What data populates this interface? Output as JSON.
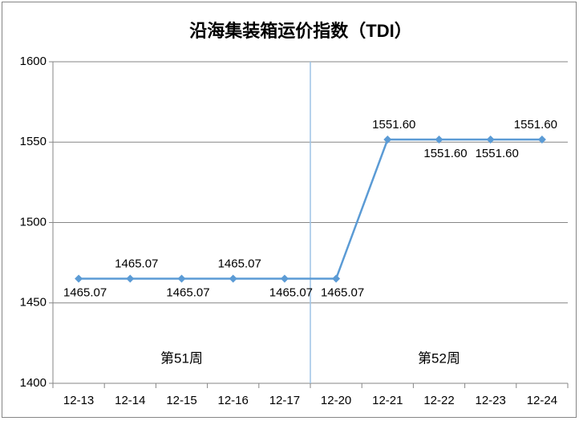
{
  "chart_data": {
    "type": "line",
    "title": "沿海集装箱运价指数（TDI）",
    "categories": [
      "12-13",
      "12-14",
      "12-15",
      "12-16",
      "12-17",
      "12-20",
      "12-21",
      "12-22",
      "12-23",
      "12-24"
    ],
    "series": [
      {
        "name": "TDI",
        "color": "#5b9bd5",
        "values": [
          1465.07,
          1465.07,
          1465.07,
          1465.07,
          1465.07,
          1465.07,
          1551.6,
          1551.6,
          1551.6,
          1551.6
        ],
        "value_labels": [
          "1465.07",
          "1465.07",
          "1465.07",
          "1465.07",
          "1465.07",
          "1465.07",
          "1551.60",
          "1551.60",
          "1551.60",
          "1551.60"
        ]
      }
    ],
    "ylim": [
      1400,
      1600
    ],
    "yticks": [
      1400,
      1450,
      1500,
      1550,
      1600
    ],
    "grid": true,
    "annotations": [
      "第51周",
      "第52周"
    ]
  }
}
